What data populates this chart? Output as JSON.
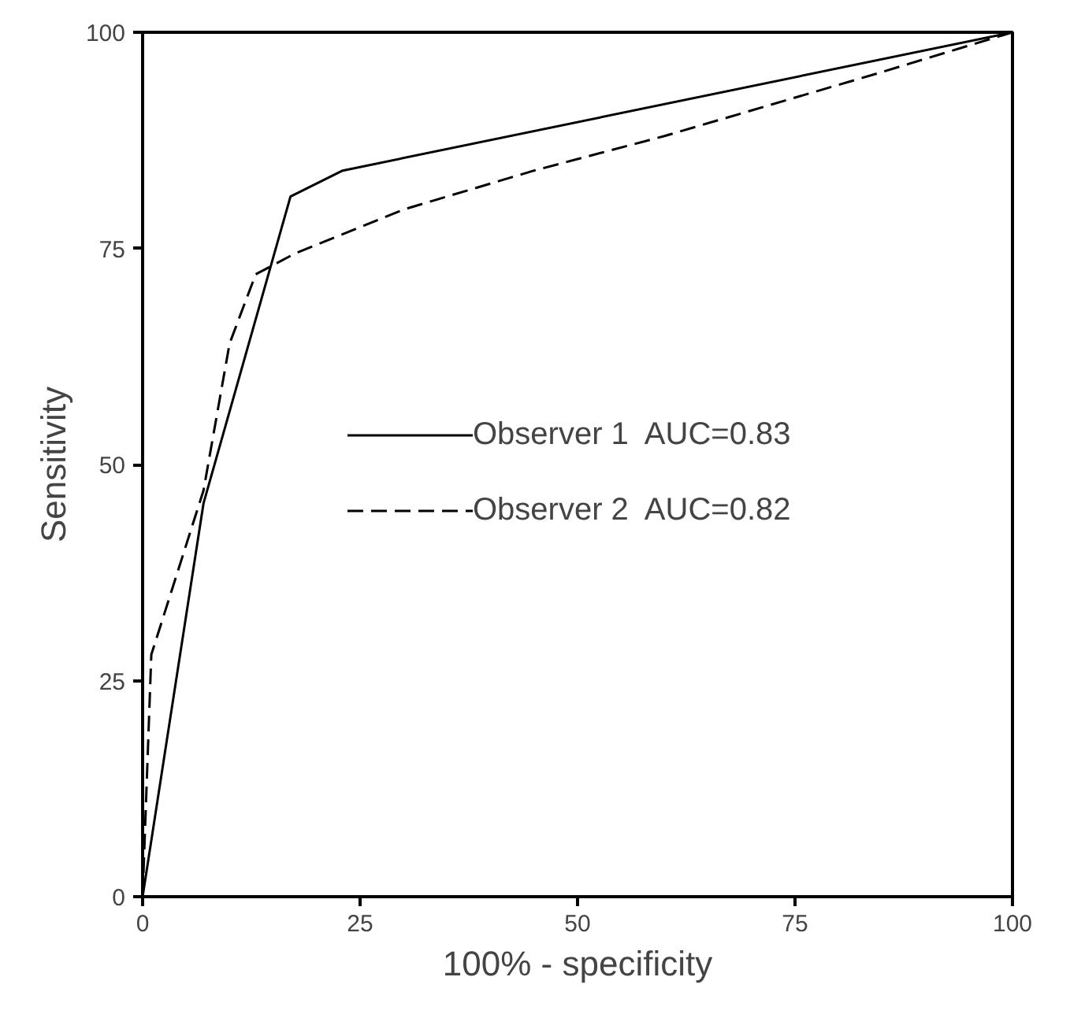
{
  "chart_data": {
    "type": "line",
    "xlabel": "100% - specificity",
    "ylabel": "Sensitivity",
    "xlim": [
      0,
      100
    ],
    "ylim": [
      0,
      100
    ],
    "xticks": [
      0,
      25,
      50,
      75,
      100
    ],
    "yticks": [
      0,
      25,
      50,
      75,
      100
    ],
    "grid": false,
    "legend": "center",
    "marker": "none",
    "series": [
      {
        "name": "Observer 1  AUC=0.83",
        "color": "#000000",
        "line_style": "solid",
        "x": [
          0,
          7,
          17,
          23,
          100
        ],
        "values": [
          0,
          45.5,
          81,
          84,
          100
        ]
      },
      {
        "name": "Observer 2  AUC=0.82",
        "color": "#000000",
        "line_style": "dashed",
        "x": [
          0,
          1,
          7,
          10,
          13,
          17.5,
          30,
          45,
          60,
          85,
          100
        ],
        "values": [
          0,
          28,
          47,
          64,
          72,
          74.4,
          79.5,
          84,
          88,
          95.4,
          100
        ]
      }
    ]
  }
}
